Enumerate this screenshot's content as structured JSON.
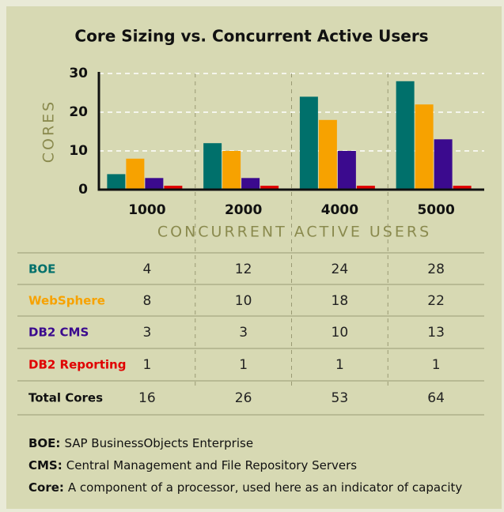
{
  "chart_data": {
    "type": "bar",
    "title": "Core Sizing vs. Concurrent Active Users",
    "y_label": "CORES",
    "x_label": "CONCURRENT ACTIVE USERS",
    "categories": [
      "1000",
      "2000",
      "4000",
      "5000"
    ],
    "series": [
      {
        "name": "BOE",
        "color": "#00706b",
        "values": [
          4,
          12,
          24,
          28
        ]
      },
      {
        "name": "WebSphere",
        "color": "#f7a200",
        "values": [
          8,
          10,
          18,
          22
        ]
      },
      {
        "name": "DB2 CMS",
        "color": "#3b0a8e",
        "values": [
          3,
          3,
          10,
          13
        ]
      },
      {
        "name": "DB2 Reporting",
        "color": "#e00000",
        "values": [
          1,
          1,
          1,
          1
        ]
      }
    ],
    "ylim": [
      0,
      30
    ],
    "yticks": [
      0,
      10,
      20,
      30
    ],
    "grid": true
  },
  "table": {
    "total_label": "Total Cores",
    "totals": [
      16,
      26,
      53,
      64
    ]
  },
  "notes": [
    {
      "term": "BOE:",
      "text": "SAP BusinessObjects Enterprise"
    },
    {
      "term": "CMS:",
      "text": "Central Management and File Repository Servers"
    },
    {
      "term": "Core:",
      "text": "A component of a processor, used here as an indicator of capacity"
    }
  ]
}
